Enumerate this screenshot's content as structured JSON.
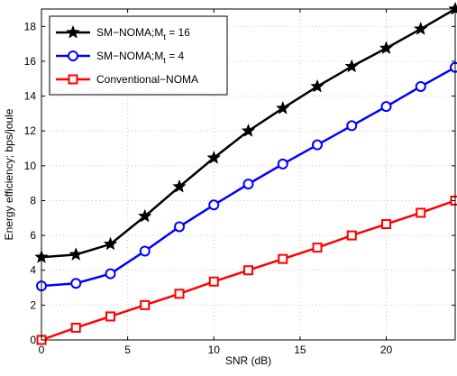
{
  "chart_data": {
    "type": "line",
    "xlabel": "SNR (dB)",
    "ylabel": "Energy efficiency; bps/joule",
    "xlim": [
      0,
      24
    ],
    "ylim": [
      0,
      19
    ],
    "x_ticks": [
      0,
      5,
      10,
      15,
      20
    ],
    "y_ticks": [
      0,
      2,
      4,
      6,
      8,
      10,
      12,
      14,
      16,
      18
    ],
    "grid": true,
    "legend_position": "top-left",
    "x": [
      0,
      2,
      4,
      6,
      8,
      10,
      12,
      14,
      16,
      18,
      20,
      22,
      24
    ],
    "series": [
      {
        "name": "SM−NOMA;M",
        "name_sub": "t",
        "name_suffix": " = 16",
        "color": "#000000",
        "marker": "star",
        "values": [
          4.75,
          4.9,
          5.5,
          7.1,
          8.8,
          10.45,
          12.0,
          13.3,
          14.55,
          15.7,
          16.75,
          17.85,
          19.0
        ]
      },
      {
        "name": "SM−NOMA;M",
        "name_sub": "t",
        "name_suffix": " = 4",
        "color": "#0000ff",
        "marker": "circle",
        "values": [
          3.1,
          3.25,
          3.8,
          5.1,
          6.5,
          7.75,
          8.95,
          10.1,
          11.2,
          12.3,
          13.4,
          14.55,
          15.65
        ]
      },
      {
        "name": "Conventional−NOMA",
        "name_sub": "",
        "name_suffix": "",
        "color": "#ff0000",
        "marker": "square",
        "values": [
          0.0,
          0.7,
          1.35,
          2.0,
          2.65,
          3.35,
          4.0,
          4.65,
          5.3,
          6.0,
          6.65,
          7.3,
          8.0
        ]
      }
    ]
  }
}
